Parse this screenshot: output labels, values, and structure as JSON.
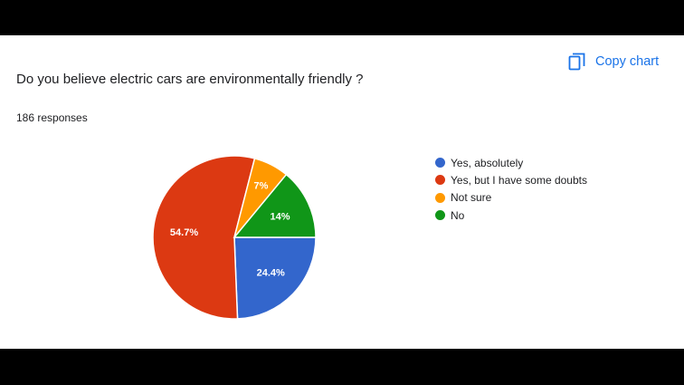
{
  "header": {
    "question": "Do you believe electric cars are environmentally friendly ?",
    "responses": "186 responses",
    "copy_label": "Copy chart",
    "copy_icon": "copy-icon"
  },
  "colors": {
    "accent": "#1a73e8",
    "text": "#202124",
    "background": "#ffffff",
    "letterbox": "#000000"
  },
  "chart_data": {
    "type": "pie",
    "categories": [
      "Yes, absolutely",
      "Yes, but I have some doubts",
      "Not sure",
      "No"
    ],
    "values": [
      24.4,
      54.7,
      7,
      14
    ],
    "labels": [
      "24.4%",
      "54.7%",
      "7%",
      "14%"
    ],
    "colors": [
      "#3366cc",
      "#dc3912",
      "#ff9900",
      "#109618"
    ],
    "legend": "right",
    "start_angle_deg": 90,
    "direction": "clockwise"
  }
}
